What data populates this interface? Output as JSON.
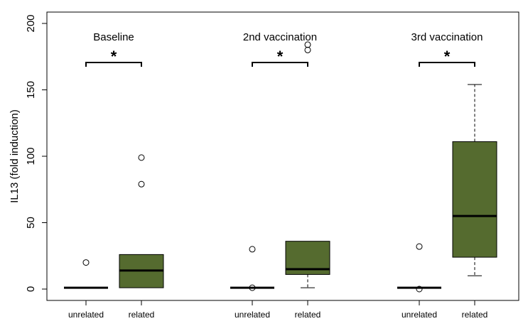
{
  "chart_data": {
    "type": "box",
    "ylabel": "IL13 (fold induction)",
    "ylim": [
      0,
      200
    ],
    "yticks": [
      0,
      50,
      100,
      150,
      200
    ],
    "grid": false,
    "colors": {
      "related": "#556b2f",
      "unrelated": "#ffffff"
    },
    "panels": [
      {
        "title": "Baseline",
        "significance": "*",
        "boxes": [
          {
            "label": "unrelated",
            "min": 1,
            "q1": 1,
            "median": 1,
            "q3": 1,
            "max": 1,
            "outliers": [
              20
            ]
          },
          {
            "label": "related",
            "min": 1,
            "q1": 1,
            "median": 14,
            "q3": 26,
            "max": 26,
            "outliers": [
              79,
              99
            ]
          }
        ]
      },
      {
        "title": "2nd vaccination",
        "significance": "*",
        "boxes": [
          {
            "label": "unrelated",
            "min": 1,
            "q1": 1,
            "median": 1,
            "q3": 1,
            "max": 1,
            "outliers": [
              1,
              30
            ]
          },
          {
            "label": "related",
            "min": 1,
            "q1": 11,
            "median": 15,
            "q3": 36,
            "max": 36,
            "outliers": [
              180,
              184
            ]
          }
        ]
      },
      {
        "title": "3rd vaccination",
        "significance": "*",
        "boxes": [
          {
            "label": "unrelated",
            "min": 1,
            "q1": 1,
            "median": 1,
            "q3": 1,
            "max": 1,
            "outliers": [
              0,
              32
            ]
          },
          {
            "label": "related",
            "min": 10,
            "q1": 24,
            "median": 55,
            "q3": 111,
            "max": 154,
            "outliers": []
          }
        ]
      }
    ]
  }
}
